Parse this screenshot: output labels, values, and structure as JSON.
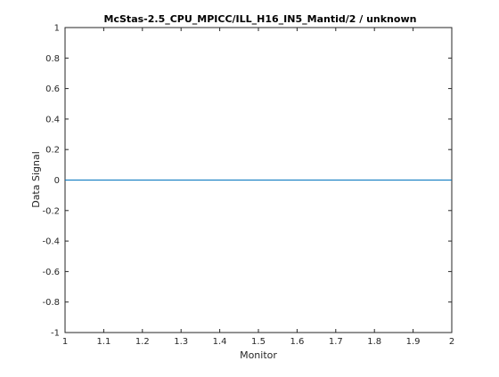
{
  "chart_data": {
    "type": "line",
    "title": "McStas-2.5_CPU_MPICC/ILL_H16_IN5_Mantid/2 / unknown",
    "xlabel": "Monitor",
    "ylabel": "Data Signal",
    "xlim": [
      1,
      2
    ],
    "ylim": [
      -1,
      1
    ],
    "x_ticks": [
      "1",
      "1.1",
      "1.2",
      "1.3",
      "1.4",
      "1.5",
      "1.6",
      "1.7",
      "1.8",
      "1.9",
      "2"
    ],
    "y_ticks": [
      "-1",
      "-0.8",
      "-0.6",
      "-0.4",
      "-0.2",
      "0",
      "0.2",
      "0.4",
      "0.6",
      "0.8",
      "1"
    ],
    "grid": false,
    "series": [
      {
        "x": [
          1,
          2
        ],
        "values": [
          0,
          0
        ]
      }
    ],
    "colors": {
      "line": "#0072bd",
      "axes": "#262626"
    }
  }
}
